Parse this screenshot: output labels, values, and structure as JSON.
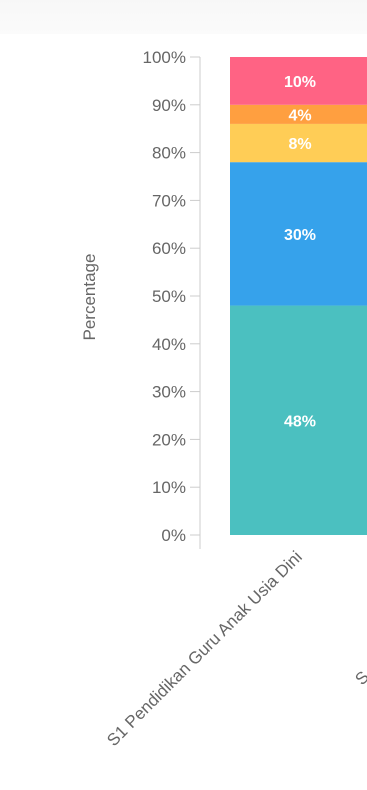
{
  "chart_data": {
    "type": "bar",
    "stacked": true,
    "ylabel": "Percentage",
    "ylim": [
      0,
      100
    ],
    "y_ticks": [
      "0%",
      "10%",
      "20%",
      "30%",
      "40%",
      "50%",
      "60%",
      "70%",
      "80%",
      "90%",
      "100%"
    ],
    "categories": [
      "S1 Pendidikan Guru Anak Usia Dini",
      "S"
    ],
    "series": [
      {
        "color": "#4bc0c0",
        "values": [
          48,
          null
        ]
      },
      {
        "color": "#36a2eb",
        "values": [
          30,
          null
        ]
      },
      {
        "color": "#ffcd56",
        "values": [
          8,
          null
        ]
      },
      {
        "color": "#ff9f40",
        "values": [
          4,
          null
        ]
      },
      {
        "color": "#ff6384",
        "values": [
          10,
          null
        ]
      }
    ],
    "data_labels": [
      "48%",
      "30%",
      "8%",
      "4%",
      "10%"
    ],
    "grid": false
  }
}
